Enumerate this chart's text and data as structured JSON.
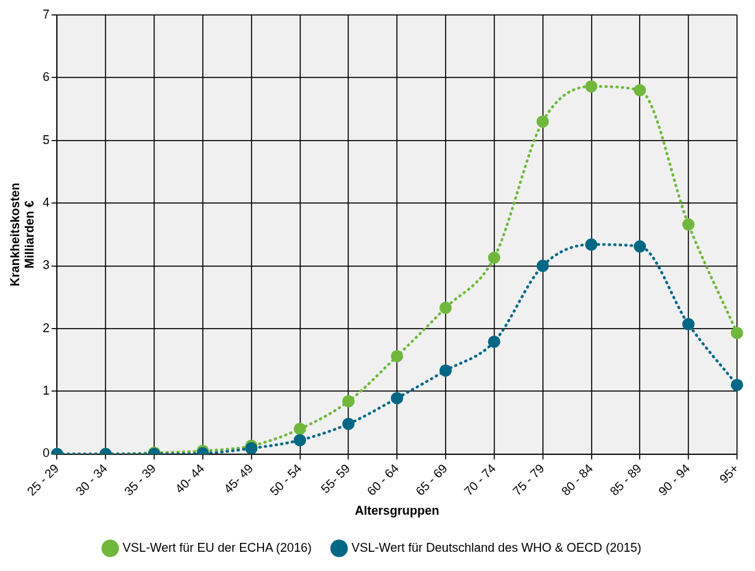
{
  "chart_data": {
    "type": "line",
    "xlabel": "Altersgruppen",
    "ylabel": "Krankheitskosten\nMilliarden €",
    "categories": [
      "25 - 29",
      "30 - 34",
      "35 - 39",
      "40- 44",
      "45- 49",
      "50 - 54",
      "55- 59",
      "60 - 64",
      "65 - 69",
      "70 - 74",
      "75 - 79",
      "80 - 84",
      "85 - 89",
      "90 - 94",
      "95+"
    ],
    "series": [
      {
        "name": "VSL-Wert für EU der ECHA (2016)",
        "color": "#70b83c",
        "values": [
          0,
          0,
          0.02,
          0.05,
          0.13,
          0.4,
          0.84,
          1.56,
          2.33,
          3.13,
          5.3,
          5.86,
          5.8,
          3.66,
          1.93
        ]
      },
      {
        "name": "VSL-Wert für Deutschland des WHO & OECD (2015)",
        "color": "#006785",
        "values": [
          0,
          0,
          0,
          0.01,
          0.09,
          0.22,
          0.48,
          0.89,
          1.33,
          1.79,
          3.0,
          3.34,
          3.31,
          2.07,
          1.1
        ]
      }
    ],
    "ylim": [
      0,
      7
    ],
    "yticks": [
      0,
      1,
      2,
      3,
      4,
      5,
      6,
      7
    ],
    "grid": true,
    "legend": "bottom",
    "marker": "circle",
    "line_style": "dotted"
  }
}
